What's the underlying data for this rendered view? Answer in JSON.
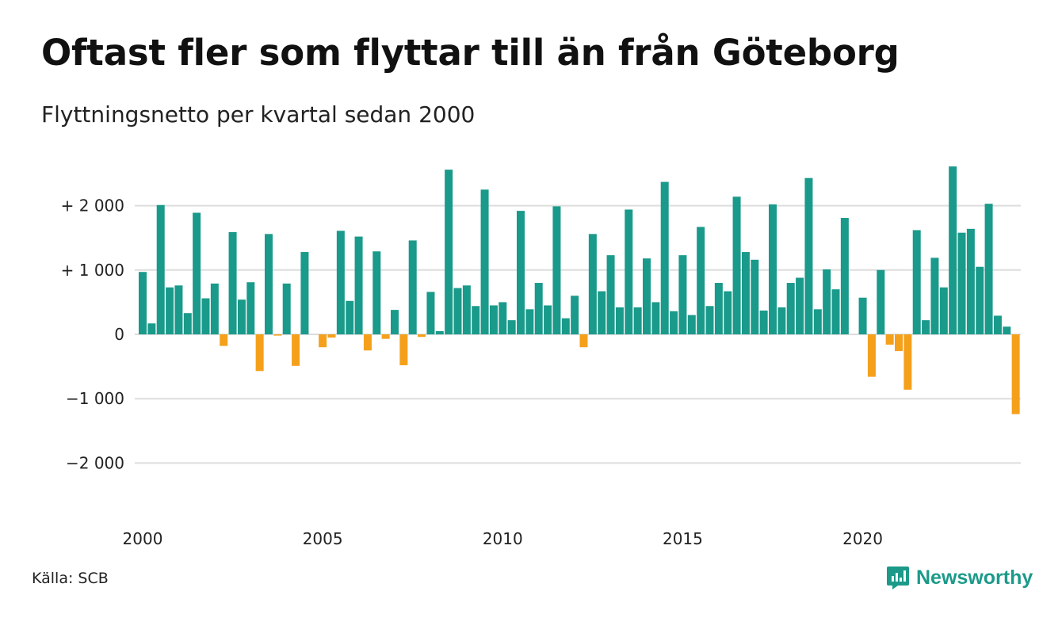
{
  "title": "Oftast fler som flyttar till än från Göteborg",
  "subtitle": "Flyttningsnetto per kvartal sedan 2000",
  "source": "Källa: SCB",
  "brand": {
    "name": "Newsworthy",
    "icon": "newsworthy-logo-icon"
  },
  "colors": {
    "positive": "#1a9a8a",
    "negative": "#f5a01b",
    "grid": "#dddddd"
  },
  "chart_data": {
    "type": "bar",
    "xaxis_type": "quarterly time, 2000 Q1 to 2024 Q2",
    "x_ticks": [
      {
        "year": 2000,
        "label": "2000"
      },
      {
        "year": 2005,
        "label": "2005"
      },
      {
        "year": 2010,
        "label": "2010"
      },
      {
        "year": 2015,
        "label": "2015"
      },
      {
        "year": 2020,
        "label": "2020"
      }
    ],
    "y_ticks": [
      {
        "value": 2000,
        "label": "+ 2 000"
      },
      {
        "value": 1000,
        "label": "+ 1 000"
      },
      {
        "value": 0,
        "label": "0"
      },
      {
        "value": -1000,
        "label": "−1 000"
      },
      {
        "value": -2000,
        "label": "−2 000"
      }
    ],
    "ylim": [
      -2500,
      2600
    ],
    "grid": true,
    "categories": [
      "2000 Q1",
      "2000 Q2",
      "2000 Q3",
      "2000 Q4",
      "2001 Q1",
      "2001 Q2",
      "2001 Q3",
      "2001 Q4",
      "2002 Q1",
      "2002 Q2",
      "2002 Q3",
      "2002 Q4",
      "2003 Q1",
      "2003 Q2",
      "2003 Q3",
      "2003 Q4",
      "2004 Q1",
      "2004 Q2",
      "2004 Q3",
      "2004 Q4",
      "2005 Q1",
      "2005 Q2",
      "2005 Q3",
      "2005 Q4",
      "2006 Q1",
      "2006 Q2",
      "2006 Q3",
      "2006 Q4",
      "2007 Q1",
      "2007 Q2",
      "2007 Q3",
      "2007 Q4",
      "2008 Q1",
      "2008 Q2",
      "2008 Q3",
      "2008 Q4",
      "2009 Q1",
      "2009 Q2",
      "2009 Q3",
      "2009 Q4",
      "2010 Q1",
      "2010 Q2",
      "2010 Q3",
      "2010 Q4",
      "2011 Q1",
      "2011 Q2",
      "2011 Q3",
      "2011 Q4",
      "2012 Q1",
      "2012 Q2",
      "2012 Q3",
      "2012 Q4",
      "2013 Q1",
      "2013 Q2",
      "2013 Q3",
      "2013 Q4",
      "2014 Q1",
      "2014 Q2",
      "2014 Q3",
      "2014 Q4",
      "2015 Q1",
      "2015 Q2",
      "2015 Q3",
      "2015 Q4",
      "2016 Q1",
      "2016 Q2",
      "2016 Q3",
      "2016 Q4",
      "2017 Q1",
      "2017 Q2",
      "2017 Q3",
      "2017 Q4",
      "2018 Q1",
      "2018 Q2",
      "2018 Q3",
      "2018 Q4",
      "2019 Q1",
      "2019 Q2",
      "2019 Q3",
      "2019 Q4",
      "2020 Q1",
      "2020 Q2",
      "2020 Q3",
      "2020 Q4",
      "2021 Q1",
      "2021 Q2",
      "2021 Q3",
      "2021 Q4",
      "2022 Q1",
      "2022 Q2",
      "2022 Q3",
      "2022 Q4",
      "2023 Q1",
      "2023 Q2",
      "2023 Q3",
      "2023 Q4",
      "2024 Q1",
      "2024 Q2"
    ],
    "values": [
      970,
      170,
      2010,
      730,
      760,
      330,
      1890,
      560,
      790,
      -180,
      1590,
      540,
      810,
      -570,
      1560,
      -20,
      790,
      -490,
      1280,
      0,
      -200,
      -50,
      1610,
      520,
      1520,
      -250,
      1290,
      -70,
      380,
      -480,
      1460,
      -40,
      660,
      50,
      2560,
      720,
      760,
      440,
      2250,
      450,
      500,
      220,
      1920,
      390,
      800,
      450,
      1990,
      250,
      600,
      -200,
      1560,
      670,
      1230,
      420,
      1940,
      420,
      1180,
      500,
      2370,
      360,
      1230,
      300,
      1670,
      440,
      800,
      670,
      2140,
      1280,
      1160,
      370,
      2020,
      420,
      800,
      880,
      2430,
      390,
      1010,
      700,
      1810,
      0,
      570,
      -660,
      1000,
      -160,
      -260,
      -860,
      1620,
      220,
      1190,
      730,
      2610,
      1580,
      1640,
      1050,
      2030,
      290,
      120,
      -1240
    ]
  }
}
